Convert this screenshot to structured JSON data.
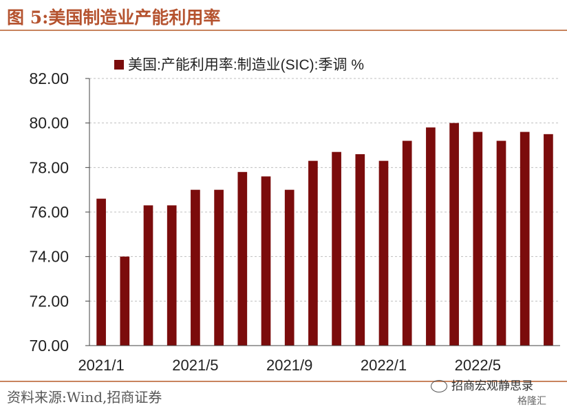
{
  "figure_title": "图 5:美国制造业产能利用率",
  "source": "资料来源:Wind,招商证券",
  "watermark": "招商宏观静思录",
  "watermark2": "格隆汇",
  "colors": {
    "bar": "#7b0c0c",
    "title": "#b5532f",
    "rule": "#c8835d",
    "grid": "#bfbfbf"
  },
  "chart_data": {
    "type": "bar",
    "legend": "美国:产能利用率:制造业(SIC):季调 %",
    "legend_position": "top",
    "categories": [
      "2021/1",
      "2021/2",
      "2021/3",
      "2021/4",
      "2021/5",
      "2021/6",
      "2021/7",
      "2021/8",
      "2021/9",
      "2021/10",
      "2021/11",
      "2021/12",
      "2022/1",
      "2022/2",
      "2022/3",
      "2022/4",
      "2022/5",
      "2022/6",
      "2022/7",
      "2022/8"
    ],
    "values": [
      76.6,
      74.0,
      76.3,
      76.3,
      77.0,
      77.0,
      77.8,
      77.6,
      77.0,
      78.3,
      78.7,
      78.6,
      78.3,
      79.2,
      79.8,
      80.0,
      79.6,
      79.2,
      79.6,
      79.5
    ],
    "x_tick_labels": [
      "2021/1",
      "2021/5",
      "2021/9",
      "2022/1",
      "2022/5"
    ],
    "y_ticks": [
      "70.00",
      "72.00",
      "74.00",
      "76.00",
      "78.00",
      "80.00",
      "82.00"
    ],
    "ylim": [
      70,
      82
    ],
    "grid": "horizontal dashed"
  }
}
